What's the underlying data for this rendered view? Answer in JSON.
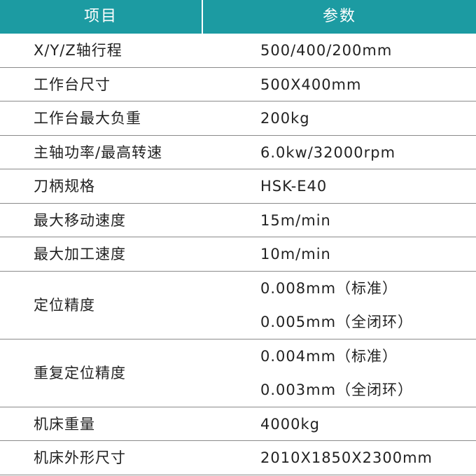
{
  "table": {
    "header": [
      "项目",
      "参数"
    ],
    "rows": [
      [
        "X/Y/Z轴行程",
        [
          "500/400/200mm"
        ]
      ],
      [
        "工作台尺寸",
        [
          "500X400mm"
        ]
      ],
      [
        "工作台最大负重",
        [
          "200kg"
        ]
      ],
      [
        "主轴功率/最高转速",
        [
          "6.0kw/32000rpm"
        ]
      ],
      [
        "刀柄规格",
        [
          "HSK-E40"
        ]
      ],
      [
        "最大移动速度",
        [
          "15m/min"
        ]
      ],
      [
        "最大加工速度",
        [
          "10m/min"
        ]
      ],
      [
        "定位精度",
        [
          "0.008mm（标准）",
          "0.005mm（全闭环）"
        ]
      ],
      [
        "重复定位精度",
        [
          "0.004mm（标准）",
          "0.003mm（全闭环）"
        ]
      ],
      [
        "机床重量",
        [
          "4000kg"
        ]
      ],
      [
        "机床外形尺寸",
        [
          "2010X1850X2300mm"
        ]
      ]
    ]
  }
}
